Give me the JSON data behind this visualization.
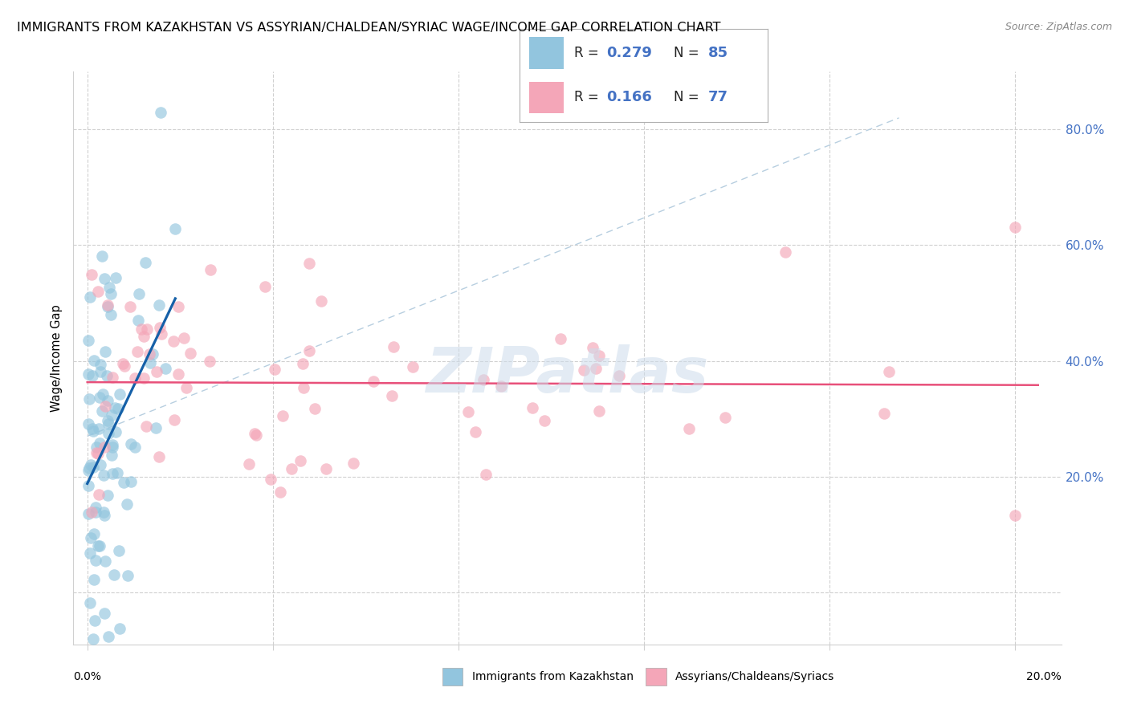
{
  "title": "IMMIGRANTS FROM KAZAKHSTAN VS ASSYRIAN/CHALDEAN/SYRIAC WAGE/INCOME GAP CORRELATION CHART",
  "source": "Source: ZipAtlas.com",
  "ylabel": "Wage/Income Gap",
  "right_ytick_labels": [
    "80.0%",
    "60.0%",
    "40.0%",
    "20.0%"
  ],
  "right_ytick_vals": [
    0.8,
    0.6,
    0.4,
    0.2
  ],
  "xmin": -0.003,
  "xmax": 0.21,
  "ymin": -0.09,
  "ymax": 0.9,
  "color_blue": "#92c5de",
  "color_pink": "#f4a6b8",
  "color_blue_line": "#1560a8",
  "color_pink_line": "#e8507a",
  "color_diag": "#b8cfe0",
  "watermark_text": "ZIPatlas",
  "watermark_color": "#cddceb",
  "watermark_fontsize": 56,
  "watermark_alpha": 0.55,
  "blue_R": 0.279,
  "blue_N": 85,
  "pink_R": 0.166,
  "pink_N": 77,
  "title_fontsize": 11.5,
  "axis_tick_color": "#4472c4",
  "grid_color": "#d0d0d0",
  "bg_color": "#ffffff",
  "legend_label1": "Immigrants from Kazakhstan",
  "legend_label2": "Assyrians/Chaldeans/Syriacs",
  "scatter_size": 110,
  "scatter_alpha": 0.65
}
